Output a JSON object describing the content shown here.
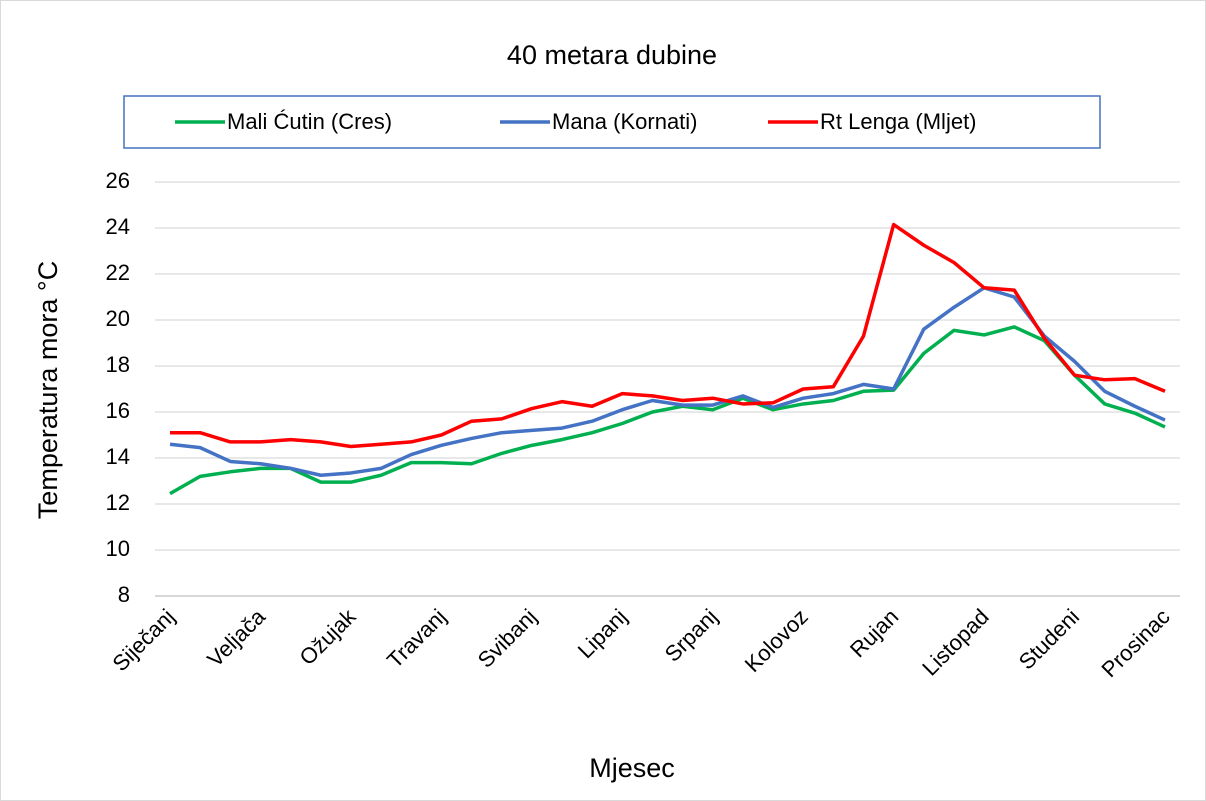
{
  "chart_data": {
    "type": "line",
    "title": "40 metara dubine",
    "x_label": "Mjesec",
    "y_label": "Temperatura mora °C",
    "categories": [
      "Siječanj",
      null,
      null,
      "Veljača",
      null,
      null,
      "Ožujak",
      null,
      null,
      "Travanj",
      null,
      null,
      "Svibanj",
      null,
      null,
      "Lipanj",
      null,
      null,
      "Srpanj",
      null,
      null,
      "Kolovoz",
      null,
      null,
      "Rujan",
      null,
      null,
      "Listopad",
      null,
      null,
      "Studeni",
      null,
      null,
      "Prosinac"
    ],
    "series": [
      {
        "name": "Mali Ćutin (Cres)",
        "color": "#00b050",
        "values": [
          12.45,
          13.2,
          13.4,
          13.55,
          13.55,
          12.95,
          12.95,
          13.25,
          13.8,
          13.8,
          13.75,
          14.2,
          14.55,
          14.8,
          15.1,
          15.5,
          16.0,
          16.25,
          16.1,
          16.6,
          16.1,
          16.35,
          16.5,
          16.9,
          16.95,
          18.55,
          19.55,
          19.35,
          19.7,
          19.1,
          17.6,
          16.35,
          15.95,
          15.35
        ]
      },
      {
        "name": "Mana (Kornati)",
        "color": "#4472c4",
        "values": [
          14.6,
          14.45,
          13.85,
          13.75,
          13.55,
          13.25,
          13.35,
          13.55,
          14.15,
          14.55,
          14.85,
          15.1,
          15.2,
          15.3,
          15.6,
          16.1,
          16.5,
          16.3,
          16.3,
          16.7,
          16.2,
          16.6,
          16.8,
          17.2,
          17.0,
          19.6,
          20.55,
          21.4,
          21.0,
          19.3,
          18.2,
          16.9,
          16.25,
          15.65
        ]
      },
      {
        "name": "Rt Lenga (Mljet)",
        "color": "#ff0000",
        "values": [
          15.1,
          15.1,
          14.7,
          14.7,
          14.8,
          14.7,
          14.5,
          14.6,
          14.7,
          15.0,
          15.6,
          15.7,
          16.15,
          16.45,
          16.25,
          16.8,
          16.7,
          16.5,
          16.6,
          16.35,
          16.4,
          17.0,
          17.1,
          19.3,
          24.15,
          23.25,
          22.5,
          21.4,
          21.3,
          19.2,
          17.6,
          17.4,
          17.45,
          16.9
        ]
      }
    ],
    "ylim": [
      8,
      26
    ],
    "yticks": [
      8,
      10,
      12,
      14,
      16,
      18,
      20,
      22,
      24,
      26
    ],
    "grid": true
  }
}
